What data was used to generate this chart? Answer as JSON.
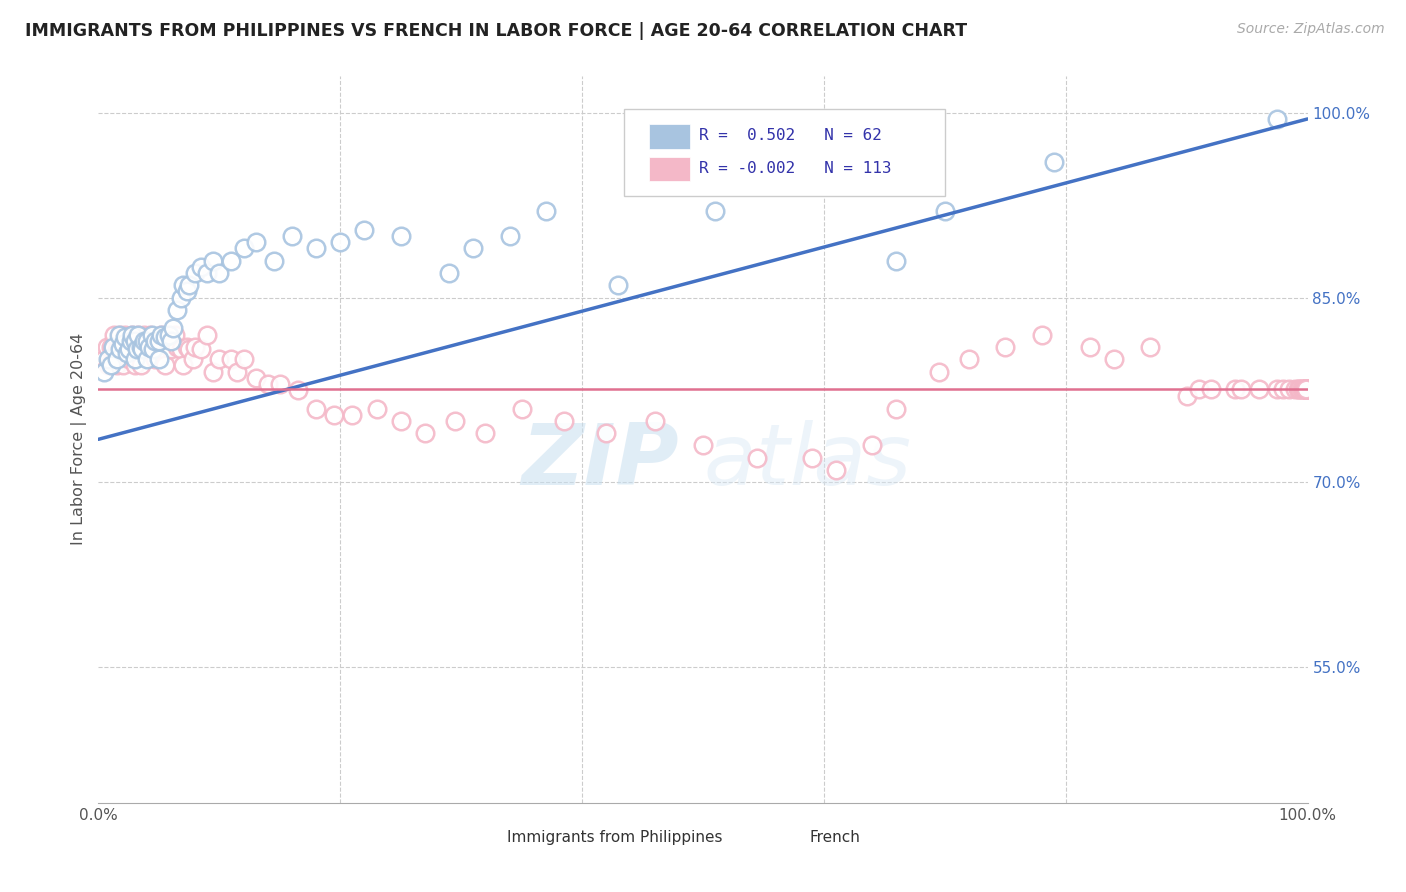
{
  "title": "IMMIGRANTS FROM PHILIPPINES VS FRENCH IN LABOR FORCE | AGE 20-64 CORRELATION CHART",
  "source": "Source: ZipAtlas.com",
  "ylabel": "In Labor Force | Age 20-64",
  "xlim": [
    0.0,
    1.0
  ],
  "ylim": [
    0.44,
    1.03
  ],
  "y_tick_values_right": [
    0.55,
    0.7,
    0.85,
    1.0
  ],
  "y_tick_labels_right": [
    "55.0%",
    "70.0%",
    "85.0%",
    "100.0%"
  ],
  "legend_r_blue": "0.502",
  "legend_n_blue": "62",
  "legend_r_pink": "-0.002",
  "legend_n_pink": "113",
  "blue_color": "#a8c4e0",
  "pink_color": "#f4b8c8",
  "blue_line_color": "#4472c4",
  "pink_line_color": "#e07090",
  "trend_line_blue_y0": 0.735,
  "trend_line_blue_y1": 0.995,
  "trend_line_pink_y": 0.776,
  "watermark_zip": "ZIP",
  "watermark_atlas": "atlas",
  "grid_color": "#cccccc",
  "background_color": "#ffffff",
  "blue_scatter_x": [
    0.005,
    0.008,
    0.01,
    0.012,
    0.015,
    0.017,
    0.018,
    0.02,
    0.022,
    0.024,
    0.025,
    0.027,
    0.028,
    0.03,
    0.03,
    0.032,
    0.033,
    0.035,
    0.036,
    0.038,
    0.04,
    0.04,
    0.042,
    0.044,
    0.045,
    0.047,
    0.05,
    0.05,
    0.052,
    0.055,
    0.058,
    0.06,
    0.062,
    0.065,
    0.068,
    0.07,
    0.073,
    0.075,
    0.08,
    0.085,
    0.09,
    0.095,
    0.1,
    0.11,
    0.12,
    0.13,
    0.145,
    0.16,
    0.18,
    0.2,
    0.22,
    0.25,
    0.29,
    0.31,
    0.34,
    0.37,
    0.43,
    0.51,
    0.66,
    0.7,
    0.79,
    0.975
  ],
  "blue_scatter_y": [
    0.79,
    0.8,
    0.795,
    0.81,
    0.8,
    0.82,
    0.808,
    0.812,
    0.818,
    0.805,
    0.808,
    0.815,
    0.82,
    0.8,
    0.815,
    0.808,
    0.82,
    0.81,
    0.808,
    0.815,
    0.8,
    0.815,
    0.81,
    0.82,
    0.808,
    0.815,
    0.8,
    0.815,
    0.82,
    0.818,
    0.82,
    0.815,
    0.825,
    0.84,
    0.85,
    0.86,
    0.855,
    0.86,
    0.87,
    0.875,
    0.87,
    0.88,
    0.87,
    0.88,
    0.89,
    0.895,
    0.88,
    0.9,
    0.89,
    0.895,
    0.905,
    0.9,
    0.87,
    0.89,
    0.9,
    0.92,
    0.86,
    0.92,
    0.88,
    0.92,
    0.96,
    0.995
  ],
  "pink_scatter_x": [
    0.005,
    0.007,
    0.008,
    0.01,
    0.01,
    0.012,
    0.013,
    0.015,
    0.015,
    0.017,
    0.018,
    0.018,
    0.02,
    0.02,
    0.022,
    0.022,
    0.024,
    0.025,
    0.025,
    0.027,
    0.028,
    0.03,
    0.03,
    0.032,
    0.033,
    0.035,
    0.035,
    0.037,
    0.038,
    0.04,
    0.042,
    0.043,
    0.045,
    0.047,
    0.048,
    0.05,
    0.052,
    0.053,
    0.055,
    0.058,
    0.06,
    0.063,
    0.065,
    0.068,
    0.07,
    0.073,
    0.075,
    0.078,
    0.08,
    0.085,
    0.09,
    0.095,
    0.1,
    0.11,
    0.115,
    0.12,
    0.13,
    0.14,
    0.15,
    0.165,
    0.18,
    0.195,
    0.21,
    0.23,
    0.25,
    0.27,
    0.295,
    0.32,
    0.35,
    0.385,
    0.42,
    0.46,
    0.5,
    0.545,
    0.59,
    0.61,
    0.64,
    0.66,
    0.695,
    0.72,
    0.75,
    0.78,
    0.82,
    0.84,
    0.87,
    0.9,
    0.91,
    0.92,
    0.94,
    0.945,
    0.96,
    0.975,
    0.98,
    0.985,
    0.99,
    0.992,
    0.993,
    0.994,
    0.995,
    0.996,
    0.997,
    0.998,
    0.999,
    0.999,
    0.999,
    0.999,
    0.999,
    0.999,
    0.999,
    0.999,
    0.999,
    0.999,
    0.999
  ],
  "pink_scatter_y": [
    0.8,
    0.81,
    0.795,
    0.81,
    0.795,
    0.808,
    0.82,
    0.808,
    0.795,
    0.81,
    0.8,
    0.82,
    0.808,
    0.795,
    0.81,
    0.82,
    0.808,
    0.8,
    0.815,
    0.808,
    0.82,
    0.81,
    0.795,
    0.808,
    0.82,
    0.81,
    0.795,
    0.808,
    0.82,
    0.81,
    0.808,
    0.82,
    0.808,
    0.8,
    0.81,
    0.808,
    0.82,
    0.808,
    0.795,
    0.81,
    0.808,
    0.82,
    0.81,
    0.808,
    0.795,
    0.81,
    0.808,
    0.8,
    0.81,
    0.808,
    0.82,
    0.79,
    0.8,
    0.8,
    0.79,
    0.8,
    0.785,
    0.78,
    0.78,
    0.775,
    0.76,
    0.755,
    0.755,
    0.76,
    0.75,
    0.74,
    0.75,
    0.74,
    0.76,
    0.75,
    0.74,
    0.75,
    0.73,
    0.72,
    0.72,
    0.71,
    0.73,
    0.76,
    0.79,
    0.8,
    0.81,
    0.82,
    0.81,
    0.8,
    0.81,
    0.77,
    0.776,
    0.776,
    0.776,
    0.776,
    0.776,
    0.776,
    0.776,
    0.776,
    0.776,
    0.776,
    0.776,
    0.776,
    0.776,
    0.776,
    0.776,
    0.776,
    0.776,
    0.776,
    0.776,
    0.776,
    0.776,
    0.776,
    0.776,
    0.776,
    0.776,
    0.776,
    0.776
  ]
}
